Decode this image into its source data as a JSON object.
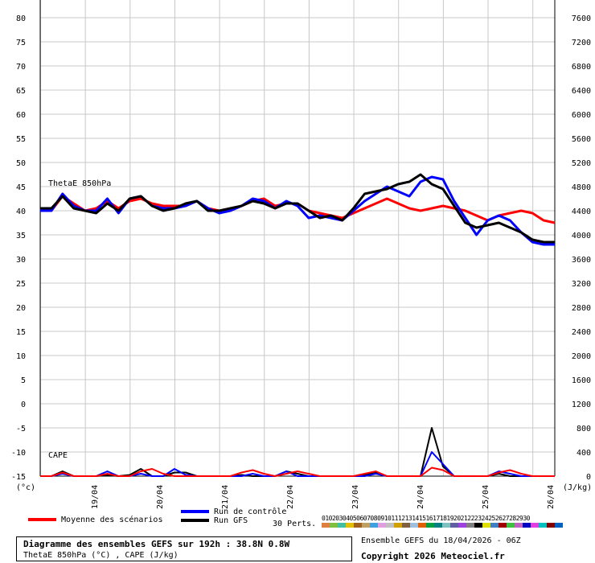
{
  "chart_data": {
    "type": "line",
    "title": "Diagramme des ensembles GEFS sur 192h : 38.8N 0.8W",
    "subtitle": "ThetaE 850hPa (°C) , CAPE (J/kg)",
    "left_axis": {
      "unit": "(°c)",
      "ylim": [
        -15,
        80
      ],
      "ticks": [
        80,
        75,
        70,
        65,
        60,
        55,
        50,
        45,
        40,
        35,
        30,
        25,
        20,
        15,
        10,
        5,
        0,
        -5,
        -10,
        -15
      ]
    },
    "right_axis": {
      "unit": "(J/kg)",
      "ylim": [
        0,
        7600
      ],
      "ticks": [
        7600,
        7200,
        6800,
        6400,
        6000,
        5600,
        5200,
        4800,
        4400,
        4000,
        3600,
        3200,
        2800,
        2400,
        2000,
        1600,
        1200,
        800,
        400,
        0
      ]
    },
    "x_ticks": [
      "19/04",
      "20/04",
      "21/04",
      "22/04",
      "23/04",
      "24/04",
      "25/04",
      "26/04"
    ],
    "grid": true,
    "panel_labels": {
      "thetae": "ThetaE 850hPa",
      "cape": "CAPE"
    },
    "series": [
      {
        "name": "Moyenne des scénarios",
        "color": "#ff0000",
        "variable": "thetae",
        "values": [
          40.5,
          40,
          43,
          41.5,
          40,
          40.5,
          42,
          40.5,
          42,
          42.5,
          41.5,
          41,
          41,
          41,
          42,
          40.5,
          40,
          40,
          41,
          42,
          42.5,
          41,
          41.5,
          41.5,
          40,
          39.5,
          39,
          38.5,
          39.5,
          40.5,
          41.5,
          42.5,
          41.5,
          40.5,
          40,
          40.5,
          41,
          40.5,
          40,
          39,
          38,
          39,
          39.5,
          40,
          39.5,
          38,
          37.5
        ]
      },
      {
        "name": "Run de contrôle",
        "color": "#0000ff",
        "variable": "thetae",
        "values": [
          40,
          40,
          43.5,
          41,
          40,
          40,
          42.5,
          39.5,
          42.5,
          43,
          41,
          40.5,
          40.5,
          41,
          42,
          40.5,
          39.5,
          40,
          41,
          42.5,
          42,
          40.5,
          42,
          41,
          38.5,
          39,
          38.5,
          38,
          40,
          42,
          43.5,
          45,
          44,
          43,
          46,
          47,
          46.5,
          42,
          38.5,
          35,
          38,
          39,
          38,
          35.5,
          33.5,
          33,
          33
        ]
      },
      {
        "name": "Run GFS",
        "color": "#000000",
        "variable": "thetae",
        "values": [
          40.5,
          40.5,
          43,
          40.5,
          40,
          39.5,
          41.5,
          40,
          42.5,
          43,
          41,
          40,
          40.5,
          41.5,
          42,
          40,
          40,
          40.5,
          41,
          42,
          41.5,
          40.5,
          41.5,
          41.5,
          40,
          38.5,
          39,
          38,
          40.5,
          43.5,
          44,
          44.5,
          45.5,
          46,
          47.5,
          45.5,
          44.5,
          41,
          37.5,
          36.5,
          37,
          37.5,
          36.5,
          35.5,
          34,
          33.5,
          33.5
        ]
      },
      {
        "name": "Run GFS CAPE",
        "color": "#000000",
        "variable": "cape",
        "values": [
          0,
          0,
          80,
          0,
          0,
          0,
          20,
          0,
          20,
          120,
          0,
          0,
          60,
          60,
          0,
          0,
          0,
          0,
          20,
          0,
          0,
          0,
          80,
          40,
          0,
          0,
          0,
          0,
          0,
          20,
          60,
          0,
          0,
          0,
          0,
          800,
          160,
          0,
          0,
          0,
          0,
          40,
          0,
          0,
          0,
          0,
          0
        ]
      },
      {
        "name": "Run de contrôle CAPE",
        "color": "#0000ff",
        "variable": "cape",
        "values": [
          0,
          0,
          40,
          0,
          0,
          0,
          80,
          0,
          0,
          40,
          0,
          0,
          120,
          20,
          0,
          0,
          0,
          0,
          0,
          40,
          0,
          0,
          80,
          0,
          0,
          0,
          0,
          0,
          0,
          0,
          40,
          0,
          0,
          0,
          0,
          400,
          200,
          0,
          0,
          0,
          0,
          80,
          40,
          0,
          0,
          0,
          0
        ]
      },
      {
        "name": "Moyenne des scénarios CAPE",
        "color": "#ff0000",
        "variable": "cape",
        "values": [
          0,
          0,
          60,
          0,
          0,
          0,
          40,
          0,
          0,
          80,
          120,
          40,
          0,
          0,
          0,
          0,
          0,
          0,
          60,
          100,
          40,
          0,
          40,
          80,
          40,
          0,
          0,
          0,
          0,
          40,
          80,
          0,
          0,
          0,
          0,
          140,
          100,
          0,
          0,
          0,
          0,
          60,
          100,
          40,
          0,
          0,
          0
        ]
      }
    ],
    "perturbations_count_label": "30 Perts.",
    "perturbation_ids": [
      "01",
      "02",
      "03",
      "04",
      "05",
      "06",
      "07",
      "08",
      "09",
      "10",
      "11",
      "12",
      "13",
      "14",
      "15",
      "16",
      "17",
      "18",
      "19",
      "20",
      "21",
      "22",
      "23",
      "24",
      "25",
      "26",
      "27",
      "28",
      "29",
      "30"
    ],
    "perturbation_colors": [
      "#e08040",
      "#80c040",
      "#40c0a0",
      "#e0c000",
      "#a06020",
      "#c0a060",
      "#40a0e0",
      "#e0a0e0",
      "#c0c0c0",
      "#d0a000",
      "#806040",
      "#a0c0e0",
      "#e06000",
      "#00a040",
      "#008080",
      "#80c0c0",
      "#6060a0",
      "#a040e0",
      "#808080",
      "#000000",
      "#e0e000",
      "#4080c0",
      "#a00000",
      "#40c040",
      "#c060c0",
      "#0000c0",
      "#e040e0",
      "#00c0c0",
      "#800000",
      "#0060c0"
    ]
  },
  "legend": {
    "mean_label": "Moyenne des scénarios",
    "control_label": "Run de contrôle",
    "gfs_label": "Run GFS",
    "perts_label": "30 Perts."
  },
  "footer": {
    "title": "Diagramme des ensembles GEFS sur 192h : 38.8N 0.8W",
    "subtitle": "ThetaE 850hPa (°C) , CAPE (J/kg)",
    "ensemble_info": "Ensemble GEFS du 18/04/2026 - 06Z",
    "copyright": "Copyright 2026 Meteociel.fr"
  }
}
